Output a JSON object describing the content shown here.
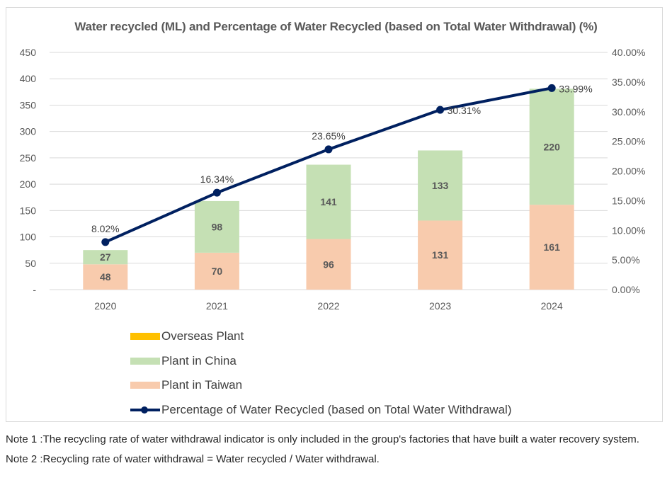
{
  "chart_data": {
    "type": "bar",
    "stacked": true,
    "title": "Water recycled (ML) and Percentage of Water Recycled (based on Total Water Withdrawal) (%)",
    "xlabel": "",
    "ylabel": "Water recycled (ML)",
    "y2label": "Percentage of Water Recycled (%)",
    "categories": [
      "2020",
      "2021",
      "2022",
      "2023",
      "2024"
    ],
    "ylim": [
      0,
      450
    ],
    "y_ticks": [
      "-",
      "50",
      "100",
      "150",
      "200",
      "250",
      "300",
      "350",
      "400",
      "450"
    ],
    "y_tick_values": [
      0,
      50,
      100,
      150,
      200,
      250,
      300,
      350,
      400,
      450
    ],
    "y2lim": [
      0,
      40
    ],
    "y2_ticks": [
      "0.00%",
      "5.00%",
      "10.00%",
      "15.00%",
      "20.00%",
      "25.00%",
      "30.00%",
      "35.00%",
      "40.00%"
    ],
    "y2_tick_values": [
      0,
      5,
      10,
      15,
      20,
      25,
      30,
      35,
      40
    ],
    "grid": true,
    "legend_position": "bottom-left",
    "series": [
      {
        "name": "Plant in Taiwan",
        "type": "bar",
        "axis": "left",
        "color": "#F8CBAD",
        "values": [
          48,
          70,
          96,
          131,
          161
        ],
        "labels": [
          "48",
          "70",
          "96",
          "131",
          "161"
        ]
      },
      {
        "name": "Plant in China",
        "type": "bar",
        "axis": "left",
        "color": "#C5E0B4",
        "values": [
          27,
          98,
          141,
          133,
          220
        ],
        "labels": [
          "27",
          "98",
          "141",
          "133",
          "220"
        ]
      },
      {
        "name": "Overseas Plant",
        "type": "bar",
        "axis": "left",
        "color": "#FFC000",
        "values": [
          0,
          0,
          0,
          0,
          0
        ],
        "labels": []
      },
      {
        "name": "Percentage of Water Recycled (based on Total Water Withdrawal)",
        "type": "line",
        "axis": "right",
        "color": "#002060",
        "values": [
          8.02,
          16.34,
          23.65,
          30.31,
          33.99
        ],
        "labels": [
          "8.02%",
          "16.34%",
          "23.65%",
          "30.31%",
          "33.99%"
        ]
      }
    ]
  },
  "legend": {
    "items": [
      {
        "label": "Overseas Plant",
        "color": "#FFC000",
        "kind": "swatch"
      },
      {
        "label": "Plant in China",
        "color": "#C5E0B4",
        "kind": "swatch"
      },
      {
        "label": "Plant in Taiwan",
        "color": "#F8CBAD",
        "kind": "swatch"
      },
      {
        "label": "Percentage of Water Recycled (based on Total Water Withdrawal)",
        "color": "#002060",
        "kind": "line"
      }
    ]
  },
  "notes": [
    {
      "prefix": "Note 1 : ",
      "text": "The recycling rate of water withdrawal indicator is only included in the group's factories that have built a water recovery system."
    },
    {
      "prefix": "Note 2 : ",
      "text": "Recycling rate of water withdrawal = Water recycled / Water withdrawal."
    }
  ]
}
